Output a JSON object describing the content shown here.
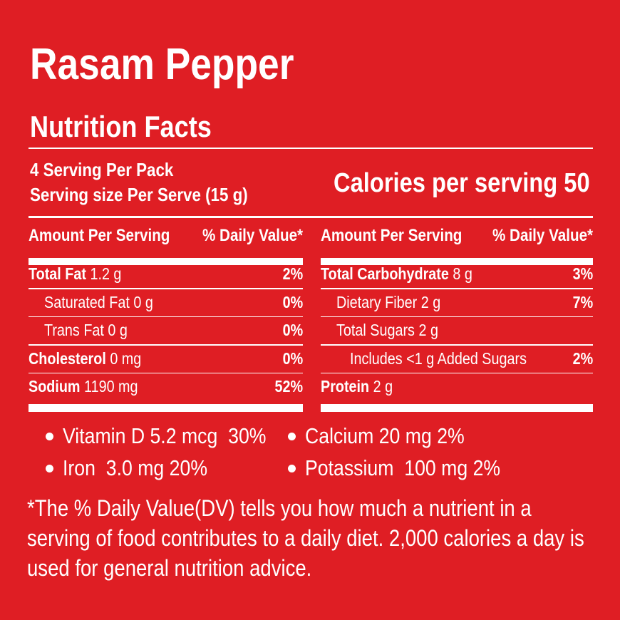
{
  "title": "Rasam Pepper",
  "subtitle": "Nutrition Facts",
  "servings": [
    "4 Serving Per Pack",
    "Serving size Per Serve (15 g)"
  ],
  "calories": "Calories per serving 50",
  "tables": [
    {
      "header": [
        "Amount Per Serving",
        "% Daily Value*"
      ],
      "rows": [
        {
          "nutrient": "Total Fat",
          "amount": "1.2 g",
          "dv": "2%"
        },
        {
          "sub": "Saturated Fat 0 g",
          "dv": "0%"
        },
        {
          "sub": "Trans Fat 0 g",
          "dv": "0%"
        },
        {
          "nutrient": "Cholesterol",
          "amount": "0 mg",
          "dv": "0%"
        },
        {
          "nutrient": "Sodium",
          "amount": "1190 mg",
          "dv": "52%"
        }
      ]
    },
    {
      "header": [
        "Amount Per Serving",
        "% Daily Value*"
      ],
      "rows": [
        {
          "nutrient": "Total Carbohydrate",
          "amount": "8 g",
          "dv": "3%"
        },
        {
          "sub": "Dietary Fiber 2 g",
          "dv": "7%"
        },
        {
          "sub": "Total Sugars 2 g"
        },
        {
          "subsub": "Includes <1 g Added Sugars",
          "dv": "2%"
        },
        {
          "nutrient": "Protein",
          "amount": "2 g"
        }
      ]
    }
  ],
  "vitamins": [
    [
      "Vitamin D 5.2 mcg  30%",
      "Calcium 20 mg 2%"
    ],
    [
      "Iron  3.0 mg 20%",
      "Potassium  100 mg 2%"
    ]
  ],
  "footnote": [
    "*The % Daily Value(DV) tells you how much a nutrient in a",
    "serving of food contributes to a daily diet. 2,000 calories a day is",
    "used for general nutrition advice."
  ]
}
